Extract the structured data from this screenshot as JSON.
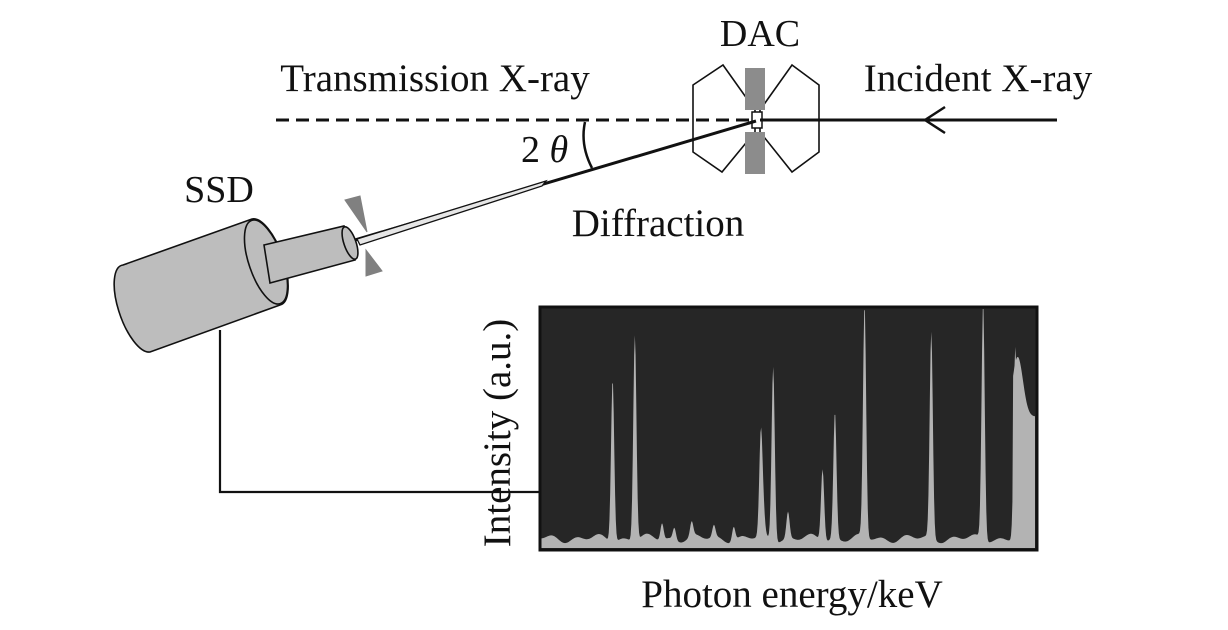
{
  "labels": {
    "dac": "DAC",
    "transmission": "Transmission X-ray",
    "incident": "Incident X-ray",
    "two_theta_num": "2",
    "two_theta_sym": "θ",
    "ssd": "SSD",
    "diffraction": "Diffraction"
  },
  "colors": {
    "line": "#111111",
    "detector_fill": "#bdbdbd",
    "collimator_fill": "#808080",
    "gasket_fill": "#8c8c8c",
    "spectrum_bg": "#262626",
    "spectrum_fill": "#b3b3b3"
  },
  "chart_data": {
    "type": "area",
    "title": "",
    "xlabel": "Photon energy/keV",
    "ylabel": "Intensity (a.u.)",
    "x_range": [
      0,
      1
    ],
    "y_range": [
      0,
      1
    ],
    "x_ticks": [],
    "y_ticks": [],
    "baseline": 0.04,
    "peaks": [
      {
        "x": 0.145,
        "height": 0.68
      },
      {
        "x": 0.19,
        "height": 0.86
      },
      {
        "x": 0.245,
        "height": 0.07
      },
      {
        "x": 0.27,
        "height": 0.05
      },
      {
        "x": 0.305,
        "height": 0.06
      },
      {
        "x": 0.35,
        "height": 0.05
      },
      {
        "x": 0.39,
        "height": 0.06
      },
      {
        "x": 0.45,
        "height": 0.05
      },
      {
        "x": 0.45,
        "height": 0.05
      },
      {
        "x": 0.445,
        "height": 0.42
      },
      {
        "x": 0.47,
        "height": 0.73
      },
      {
        "x": 0.5,
        "height": 0.11
      },
      {
        "x": 0.57,
        "height": 0.3
      },
      {
        "x": 0.595,
        "height": 0.53
      },
      {
        "x": 0.655,
        "height": 0.97
      },
      {
        "x": 0.79,
        "height": 0.86
      },
      {
        "x": 0.895,
        "height": 0.99
      },
      {
        "x": 0.96,
        "height": 0.8
      }
    ]
  }
}
